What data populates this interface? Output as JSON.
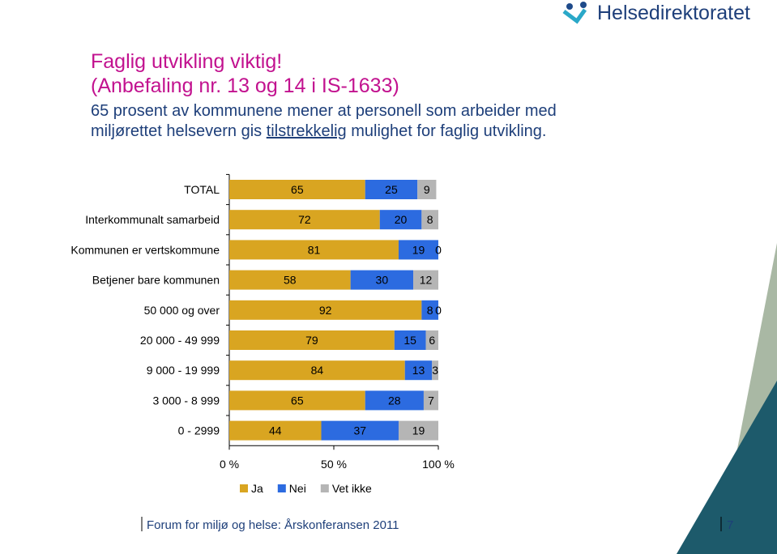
{
  "slide": {
    "logo": "Helsedirektoratet",
    "title_line1": "Faglig utvikling viktig!",
    "title_line2": "(Anbefaling nr. 13 og 14 i IS-1633)",
    "subtitle_line1": "65 prosent av kommunene mener at personell som arbeider med",
    "subtitle_line2_start": "miljørettet helsevern gis",
    "subtitle_line2_underlined": "tilstrekkelig",
    "subtitle_line2_end": "mulighet for faglig utvikling.",
    "footer": "Forum for miljø og helse: Årskonferansen 2011",
    "page_number": "7"
  },
  "chart_data": {
    "type": "stacked-bar-horizontal",
    "categories": [
      "TOTAL",
      "Interkommunalt samarbeid",
      "Kommunen er vertskommune",
      "Betjener bare kommunen",
      "50 000 og over",
      "20 000 - 49 999",
      "9 000 - 19 999",
      "3 000 - 8 999",
      "0 - 2999"
    ],
    "series": [
      {
        "name": "Ja",
        "color": "#d9a521",
        "values": [
          65,
          72,
          81,
          58,
          92,
          79,
          84,
          65,
          44
        ]
      },
      {
        "name": "Nei",
        "color": "#2c6be0",
        "values": [
          25,
          20,
          19,
          30,
          8,
          15,
          13,
          28,
          37
        ]
      },
      {
        "name": "Vet ikke",
        "color": "#b5b5b5",
        "values": [
          9,
          8,
          0,
          12,
          0,
          6,
          3,
          7,
          19
        ]
      }
    ],
    "xlim": [
      0,
      100
    ],
    "xticks": [
      {
        "value": 0,
        "label": "0 %"
      },
      {
        "value": 50,
        "label": "50 %"
      },
      {
        "value": 100,
        "label": "100 %"
      }
    ],
    "legend": "bottom"
  }
}
